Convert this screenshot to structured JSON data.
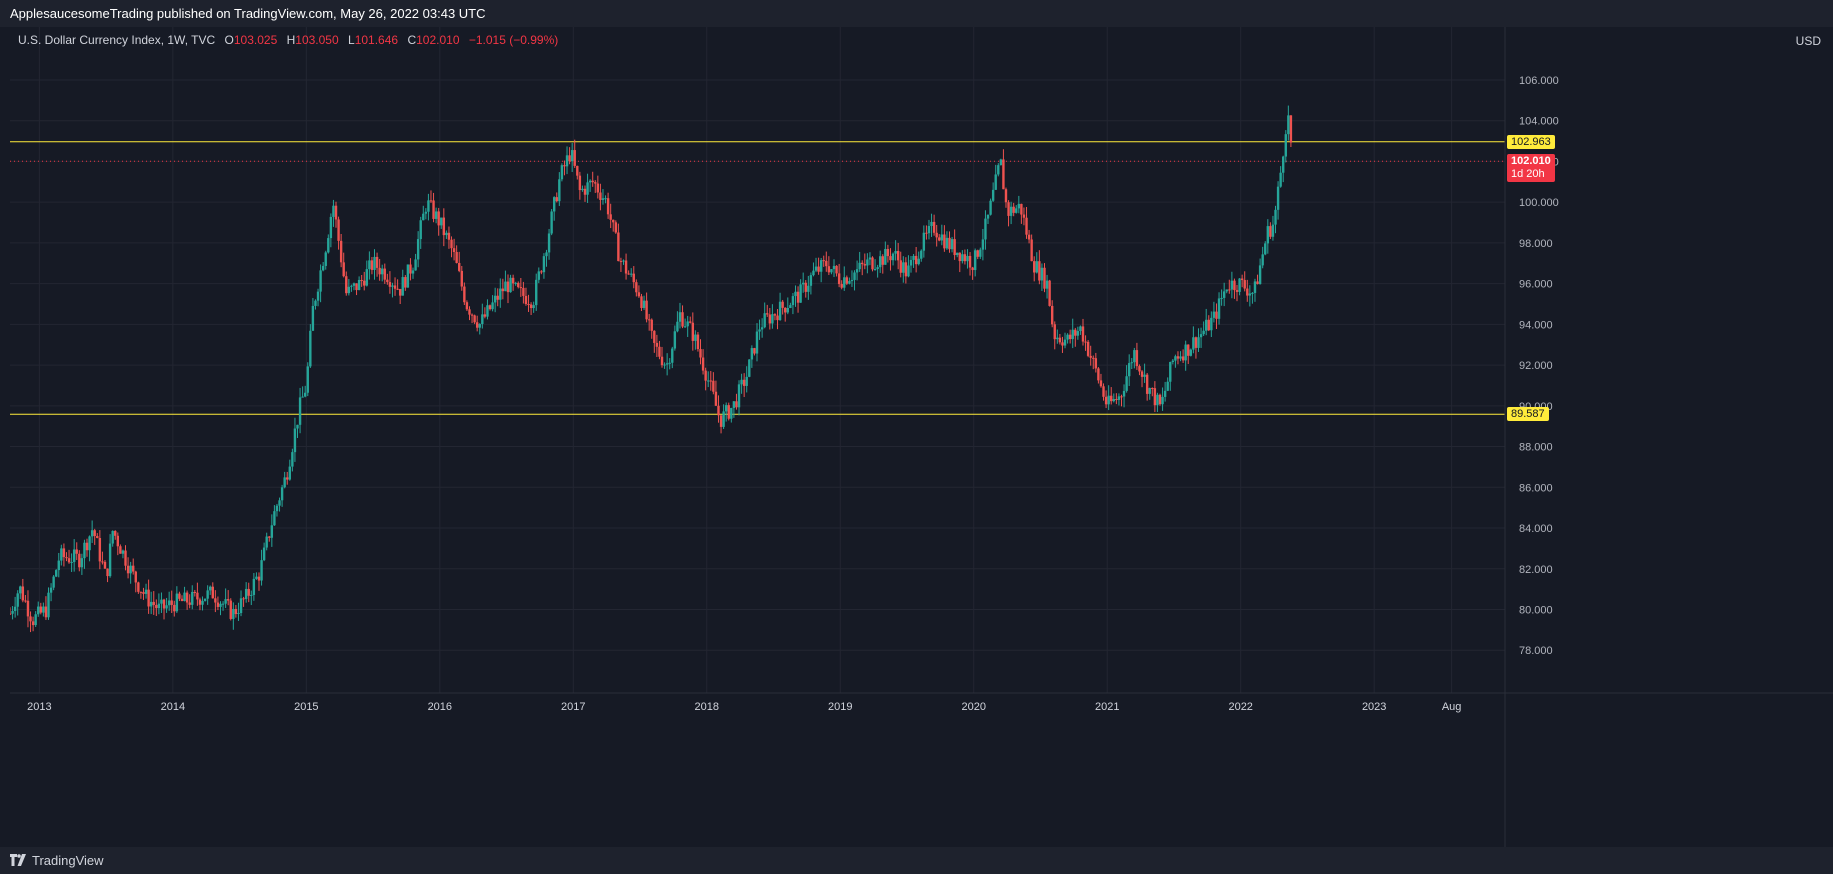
{
  "header": {
    "publish_text": "ApplesaucesomeTrading published on TradingView.com, May 26, 2022 03:43 UTC"
  },
  "legend": {
    "symbol": "U.S. Dollar Currency Index, 1W, TVC",
    "open_label": "O",
    "open": "103.025",
    "high_label": "H",
    "high": "103.050",
    "low_label": "L",
    "low": "101.646",
    "close_label": "C",
    "close": "102.010",
    "change": "−1.015 (−0.99%)"
  },
  "axis": {
    "currency": "USD"
  },
  "footer": {
    "brand": "TradingView"
  },
  "colors": {
    "up": "#26a69a",
    "down": "#ef5350",
    "level": "#ffeb3b",
    "last": "#f23645",
    "grid": "#232632"
  },
  "chart_data": {
    "type": "candlestick",
    "title": "U.S. Dollar Currency Index, 1W, TVC",
    "y_ticks": [
      78,
      80,
      82,
      84,
      86,
      88,
      90,
      92,
      94,
      96,
      98,
      100,
      102,
      104,
      106
    ],
    "y_tick_labels": [
      "78.000",
      "80.000",
      "82.000",
      "84.000",
      "86.000",
      "88.000",
      "90.000",
      "92.000",
      "94.000",
      "96.000",
      "98.000",
      "100.000",
      "102.000",
      "104.000",
      "106.000"
    ],
    "ylim": [
      75.9,
      108.6
    ],
    "x_ticks": [
      "2013",
      "2014",
      "2015",
      "2016",
      "2017",
      "2018",
      "2019",
      "2020",
      "2021",
      "2022",
      "2023",
      "Aug"
    ],
    "x_tick_positions": [
      2013.0,
      2014.0,
      2015.0,
      2016.0,
      2017.0,
      2018.0,
      2019.0,
      2020.0,
      2021.0,
      2022.0,
      2023.0,
      2023.58
    ],
    "xlim": [
      2012.78,
      2023.98
    ],
    "horizontal_levels": [
      {
        "value": 102.963,
        "label": "102.963"
      },
      {
        "value": 89.587,
        "label": "89.587"
      }
    ],
    "last_price": {
      "value": 102.01,
      "label": "102.010",
      "countdown": "1d 20h"
    },
    "close_path": [
      [
        2012.78,
        79.8
      ],
      [
        2012.85,
        81.1
      ],
      [
        2012.95,
        79.5
      ],
      [
        2013.05,
        80.0
      ],
      [
        2013.15,
        82.6
      ],
      [
        2013.3,
        82.5
      ],
      [
        2013.4,
        84.0
      ],
      [
        2013.5,
        81.5
      ],
      [
        2013.55,
        83.9
      ],
      [
        2013.7,
        81.7
      ],
      [
        2013.8,
        80.6
      ],
      [
        2013.9,
        80.0
      ],
      [
        2014.0,
        80.3
      ],
      [
        2014.15,
        80.5
      ],
      [
        2014.3,
        80.8
      ],
      [
        2014.45,
        79.8
      ],
      [
        2014.55,
        80.6
      ],
      [
        2014.65,
        81.8
      ],
      [
        2014.75,
        84.5
      ],
      [
        2014.85,
        86.6
      ],
      [
        2014.95,
        89.9
      ],
      [
        2015.0,
        91.0
      ],
      [
        2015.05,
        94.8
      ],
      [
        2015.15,
        98.0
      ],
      [
        2015.2,
        100.0
      ],
      [
        2015.3,
        95.5
      ],
      [
        2015.4,
        96.0
      ],
      [
        2015.5,
        97.0
      ],
      [
        2015.6,
        96.5
      ],
      [
        2015.7,
        95.7
      ],
      [
        2015.8,
        97.0
      ],
      [
        2015.9,
        100.0
      ],
      [
        2016.0,
        99.0
      ],
      [
        2016.1,
        97.5
      ],
      [
        2016.2,
        95.0
      ],
      [
        2016.3,
        94.0
      ],
      [
        2016.4,
        95.0
      ],
      [
        2016.5,
        96.0
      ],
      [
        2016.6,
        95.5
      ],
      [
        2016.7,
        95.2
      ],
      [
        2016.8,
        98.0
      ],
      [
        2016.9,
        101.2
      ],
      [
        2016.98,
        102.5
      ],
      [
        2017.05,
        100.5
      ],
      [
        2017.15,
        101.0
      ],
      [
        2017.25,
        100.0
      ],
      [
        2017.35,
        97.2
      ],
      [
        2017.5,
        95.5
      ],
      [
        2017.6,
        93.0
      ],
      [
        2017.7,
        92.0
      ],
      [
        2017.8,
        94.5
      ],
      [
        2017.9,
        93.5
      ],
      [
        2018.0,
        91.5
      ],
      [
        2018.1,
        89.3
      ],
      [
        2018.2,
        90.0
      ],
      [
        2018.3,
        91.5
      ],
      [
        2018.4,
        94.0
      ],
      [
        2018.5,
        94.5
      ],
      [
        2018.6,
        95.0
      ],
      [
        2018.7,
        95.5
      ],
      [
        2018.8,
        96.5
      ],
      [
        2018.9,
        97.0
      ],
      [
        2019.0,
        96.2
      ],
      [
        2019.1,
        96.5
      ],
      [
        2019.2,
        97.0
      ],
      [
        2019.3,
        97.2
      ],
      [
        2019.4,
        97.5
      ],
      [
        2019.5,
        96.5
      ],
      [
        2019.6,
        97.8
      ],
      [
        2019.7,
        98.8
      ],
      [
        2019.8,
        98.0
      ],
      [
        2019.9,
        97.5
      ],
      [
        2020.0,
        97.0
      ],
      [
        2020.1,
        99.0
      ],
      [
        2020.2,
        102.0
      ],
      [
        2020.25,
        99.5
      ],
      [
        2020.35,
        99.8
      ],
      [
        2020.45,
        97.0
      ],
      [
        2020.55,
        96.0
      ],
      [
        2020.6,
        93.5
      ],
      [
        2020.7,
        93.2
      ],
      [
        2020.8,
        93.8
      ],
      [
        2020.9,
        92.0
      ],
      [
        2021.0,
        90.0
      ],
      [
        2021.1,
        90.5
      ],
      [
        2021.2,
        92.7
      ],
      [
        2021.3,
        91.0
      ],
      [
        2021.4,
        89.9
      ],
      [
        2021.5,
        92.4
      ],
      [
        2021.6,
        92.8
      ],
      [
        2021.7,
        93.5
      ],
      [
        2021.8,
        94.3
      ],
      [
        2021.9,
        96.0
      ],
      [
        2022.0,
        96.0
      ],
      [
        2022.1,
        95.5
      ],
      [
        2022.2,
        98.5
      ],
      [
        2022.25,
        99.0
      ],
      [
        2022.3,
        101.5
      ],
      [
        2022.35,
        104.5
      ],
      [
        2022.39,
        102.0
      ]
    ]
  }
}
